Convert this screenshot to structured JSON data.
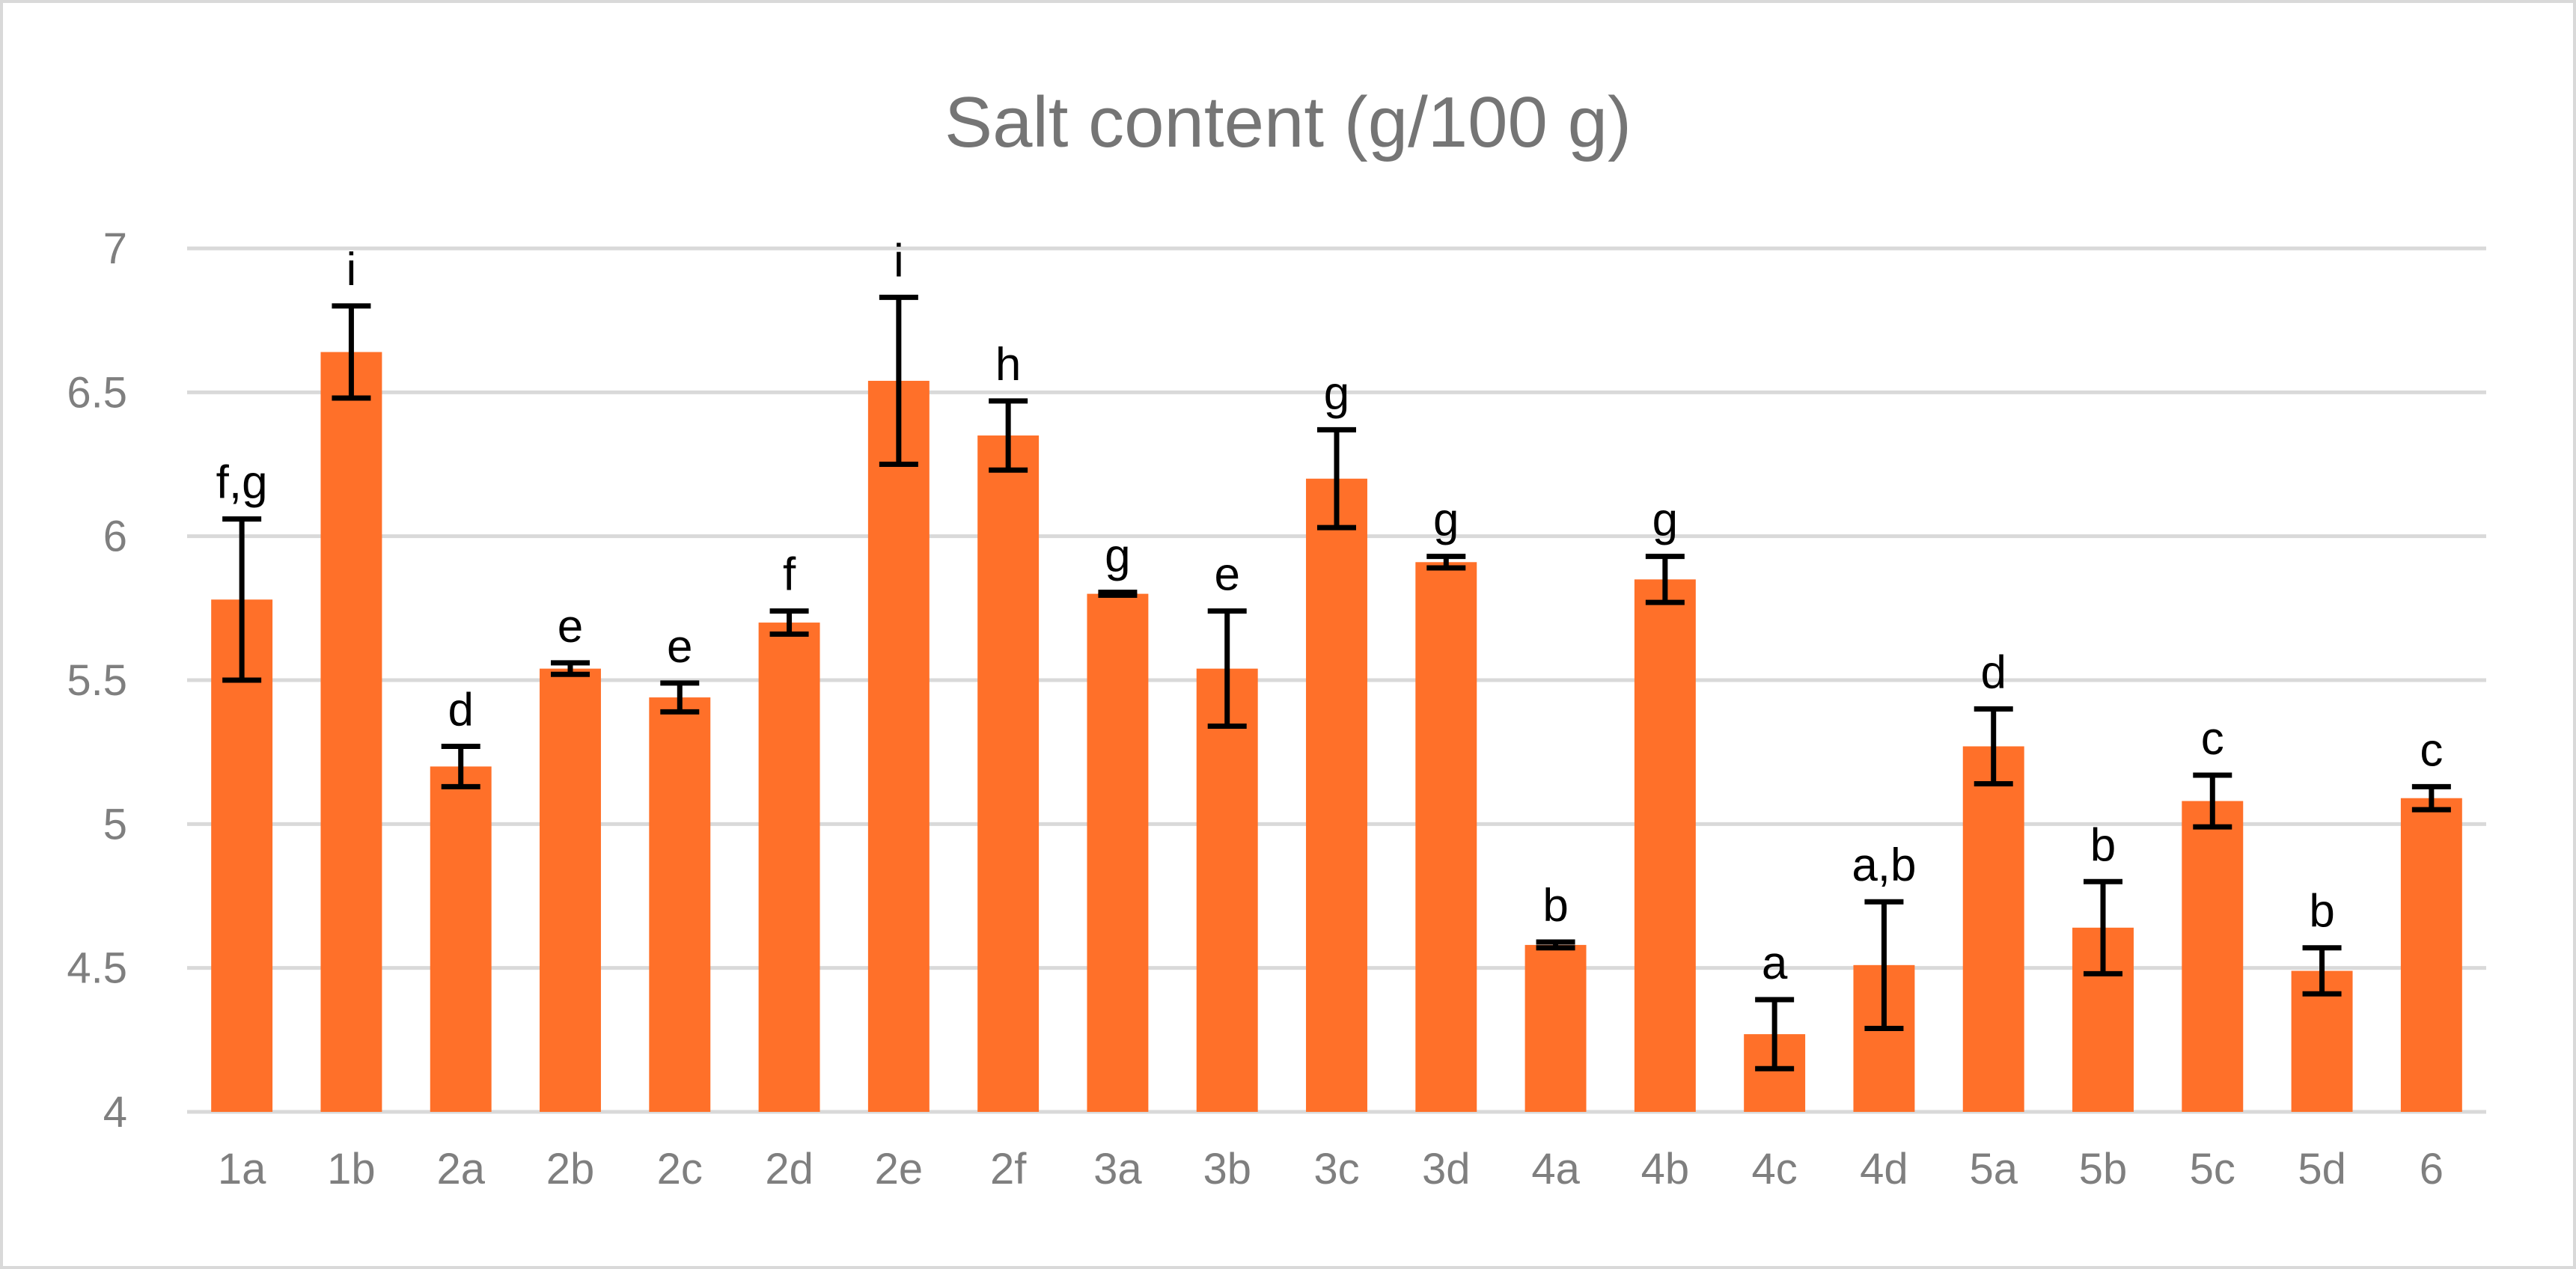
{
  "chart_data": {
    "type": "bar",
    "title": "Salt content (g/100 g)",
    "xlabel": "",
    "ylabel": "",
    "ylim": [
      4,
      7
    ],
    "yticks": [
      4,
      4.5,
      5,
      5.5,
      6,
      6.5,
      7
    ],
    "ytick_labels": [
      "4",
      "4.5",
      "5",
      "5.5",
      "6",
      "6.5",
      "7"
    ],
    "grid": true,
    "legend": "none",
    "bar_color": "#FF7029",
    "error_bar_color": "#000000",
    "categories": [
      "1a",
      "1b",
      "2a",
      "2b",
      "2c",
      "2d",
      "2e",
      "2f",
      "3a",
      "3b",
      "3c",
      "3d",
      "4a",
      "4b",
      "4c",
      "4d",
      "5a",
      "5b",
      "5c",
      "5d",
      "6"
    ],
    "series": [
      {
        "values": [
          5.78,
          6.64,
          5.2,
          5.54,
          5.44,
          5.7,
          6.54,
          6.35,
          5.8,
          5.54,
          6.2,
          5.91,
          4.58,
          5.85,
          4.27,
          4.51,
          5.27,
          4.64,
          5.08,
          4.49,
          5.09
        ],
        "errors": [
          0.28,
          0.16,
          0.07,
          0.02,
          0.05,
          0.04,
          0.29,
          0.12,
          0.005,
          0.2,
          0.17,
          0.02,
          0.01,
          0.08,
          0.12,
          0.22,
          0.13,
          0.16,
          0.09,
          0.08,
          0.04
        ]
      }
    ],
    "annotations": [
      "f,g",
      "i",
      "d",
      "e",
      "e",
      "f",
      "i",
      "h",
      "g",
      "e",
      "g",
      "g",
      "b",
      "g",
      "a",
      "a,b",
      "d",
      "b",
      "c",
      "b",
      "c"
    ]
  }
}
